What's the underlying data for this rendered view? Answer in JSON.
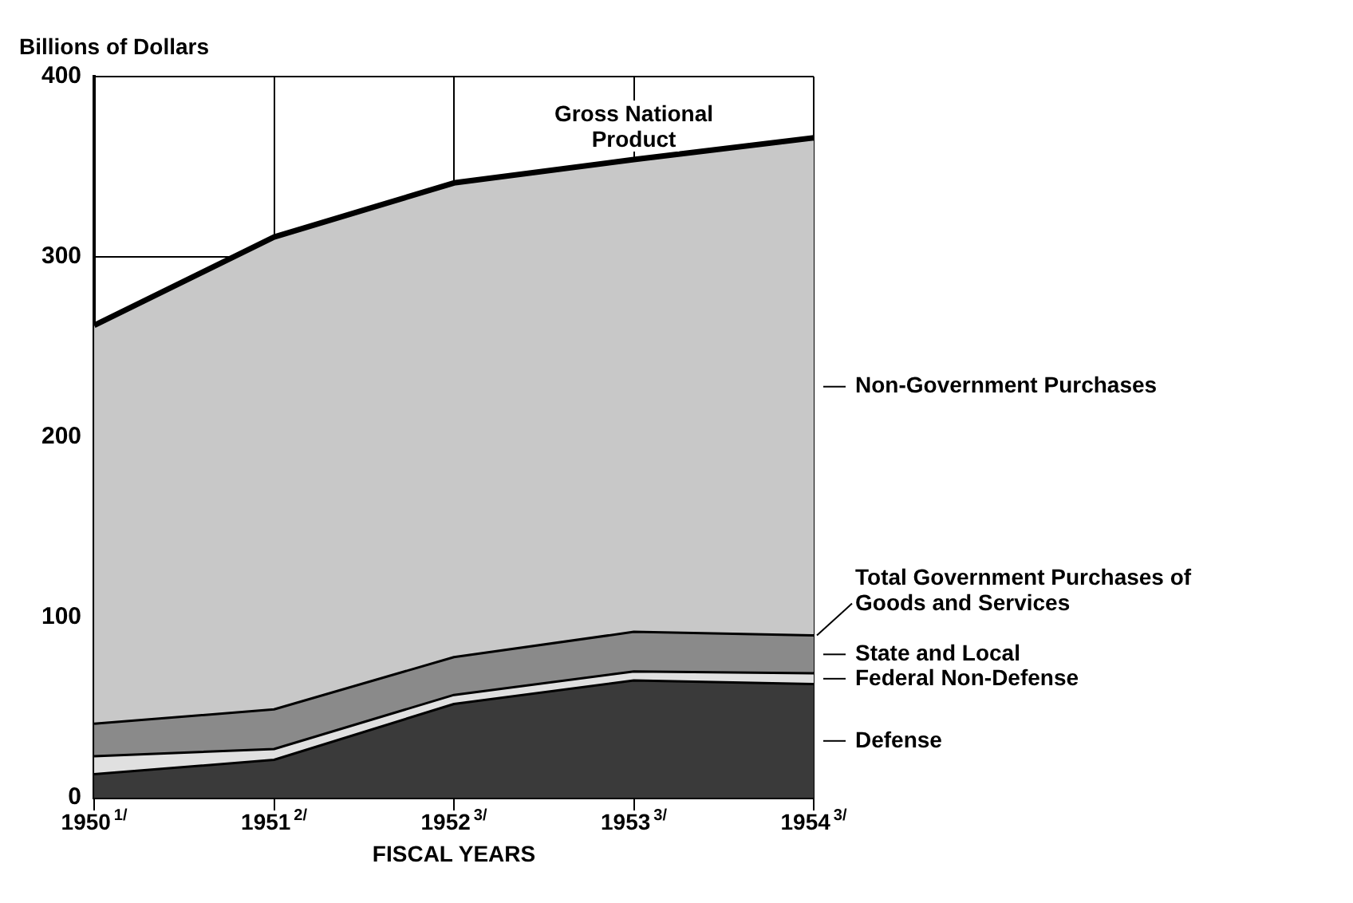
{
  "chart_data": {
    "type": "area",
    "stacked": true,
    "ylabel": "Billions of Dollars",
    "xlabel": "FISCAL YEARS",
    "categories": [
      "1950$^{1/}$",
      "1951$^{2/}$",
      "1952$^{3/}$",
      "1953$^{3/}$",
      "1954$^{3/}$"
    ],
    "series": [
      {
        "name": "Defense",
        "color": "#3a3a3a",
        "values": [
          13,
          21,
          52,
          65,
          63
        ]
      },
      {
        "name": "Federal Non-Defense",
        "color": "#e0e0e0",
        "values": [
          10,
          6,
          5,
          5,
          6
        ]
      },
      {
        "name": "State and Local",
        "color": "#8a8a8a",
        "values": [
          18,
          22,
          21,
          22,
          21
        ]
      },
      {
        "name": "Non-Government Purchases",
        "color": "#c8c8c8",
        "values": [
          221,
          262,
          263,
          262,
          276
        ]
      }
    ],
    "annotations": [
      {
        "text": "Gross National Product",
        "x": "1953$^{3/}$",
        "y": 354
      },
      {
        "text": "Total Government Purchases of Goods and Services",
        "x": "1954$^{3/}$",
        "y": 90
      }
    ],
    "ylim": [
      0,
      400
    ],
    "yticks": [
      0,
      100,
      200,
      300,
      400
    ],
    "grid": true,
    "legend": "right"
  }
}
